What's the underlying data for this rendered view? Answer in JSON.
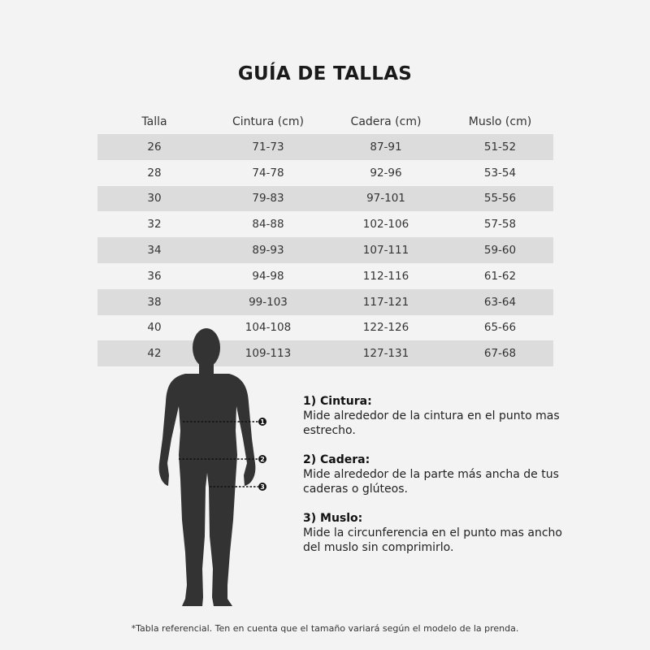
{
  "title": "GUÍA DE TALLAS",
  "table": {
    "headers": [
      "Talla",
      "Cintura (cm)",
      "Cadera (cm)",
      "Muslo (cm)"
    ],
    "rows": [
      [
        "26",
        "71-73",
        "87-91",
        "51-52"
      ],
      [
        "28",
        "74-78",
        "92-96",
        "53-54"
      ],
      [
        "30",
        "79-83",
        "97-101",
        "55-56"
      ],
      [
        "32",
        "84-88",
        "102-106",
        "57-58"
      ],
      [
        "34",
        "89-93",
        "107-111",
        "59-60"
      ],
      [
        "36",
        "94-98",
        "112-116",
        "61-62"
      ],
      [
        "38",
        "99-103",
        "117-121",
        "63-64"
      ],
      [
        "40",
        "104-108",
        "122-126",
        "65-66"
      ],
      [
        "42",
        "109-113",
        "127-131",
        "67-68"
      ]
    ]
  },
  "markers": [
    "1",
    "2",
    "3"
  ],
  "notes": [
    {
      "heading": "1) Cintura:",
      "text": "Mide alrededor de la cintura en el punto mas estrecho."
    },
    {
      "heading": "2) Cadera:",
      "text": "Mide alrededor de la parte más ancha de tus caderas o glúteos."
    },
    {
      "heading": "3) Muslo:",
      "text": "Mide la circunferencia en el punto mas ancho del muslo sin comprimirlo."
    }
  ],
  "footnote": "*Tabla referencial. Ten en cuenta que el tamaño variará según el modelo de la prenda.",
  "colors": {
    "background": "#f3f3f3",
    "stripe": "#dcdcdc",
    "figure": "#333333"
  }
}
